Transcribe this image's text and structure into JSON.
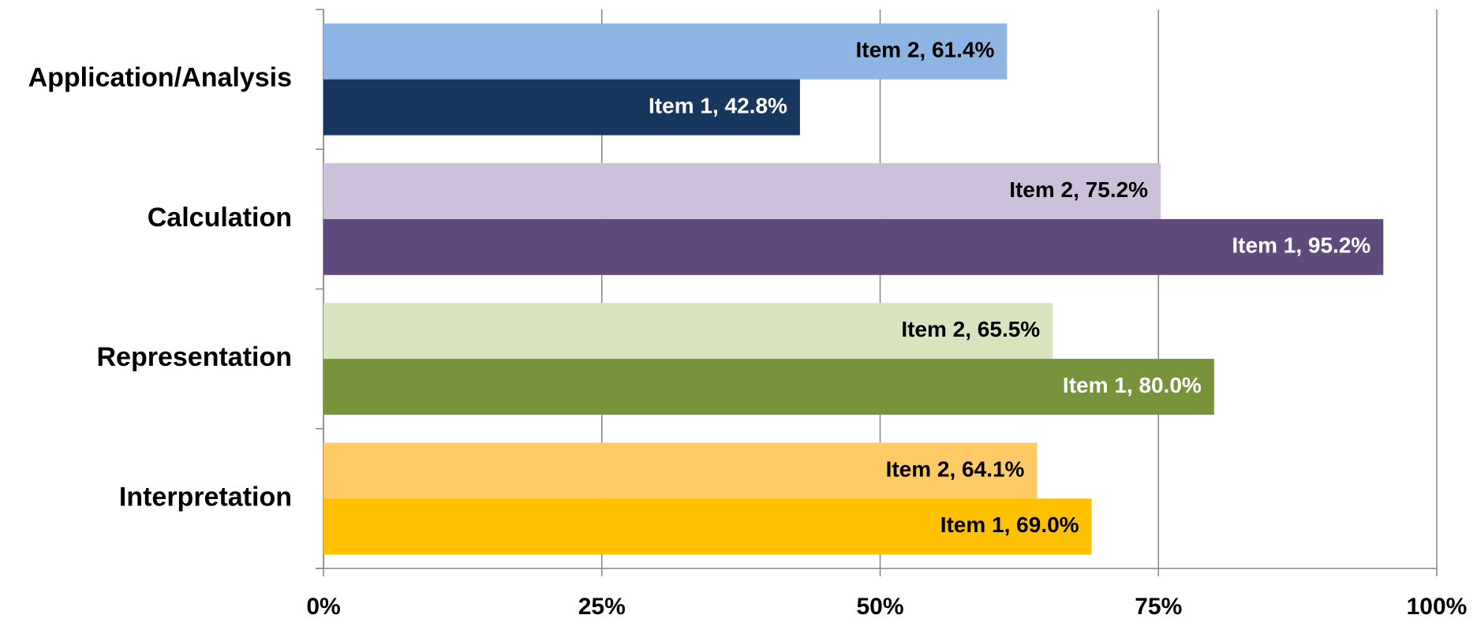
{
  "chart_data": {
    "type": "hbar",
    "categories": [
      "Application/Analysis",
      "Calculation",
      "Representation",
      "Interpretation"
    ],
    "series": [
      {
        "name": "Item 2",
        "colors": [
          "#8db4e2",
          "#ccc0da",
          "#d7e4bd",
          "#fdca66"
        ],
        "values": [
          61.4,
          75.2,
          65.5,
          64.1
        ],
        "value_labels": [
          "Item 2, 61.4%",
          "Item 2, 75.2%",
          "Item 2, 65.5%",
          "Item 2, 64.1%"
        ]
      },
      {
        "name": "Item 1",
        "colors": [
          "#17375e",
          "#604a7b",
          "#77933c",
          "#ffc000"
        ],
        "values": [
          42.8,
          95.2,
          80.0,
          69.0
        ],
        "value_labels": [
          "Item 1, 42.8%",
          "Item 1, 95.2%",
          "Item 1, 80.0%",
          "Item 1, 69.0%"
        ]
      }
    ],
    "xlim": [
      0,
      100
    ],
    "xticks": [
      {
        "value": 0,
        "label": "0%"
      },
      {
        "value": 25,
        "label": "25%"
      },
      {
        "value": 50,
        "label": "50%"
      },
      {
        "value": 75,
        "label": "75%"
      },
      {
        "value": 100,
        "label": "100%"
      }
    ],
    "grid": true
  }
}
